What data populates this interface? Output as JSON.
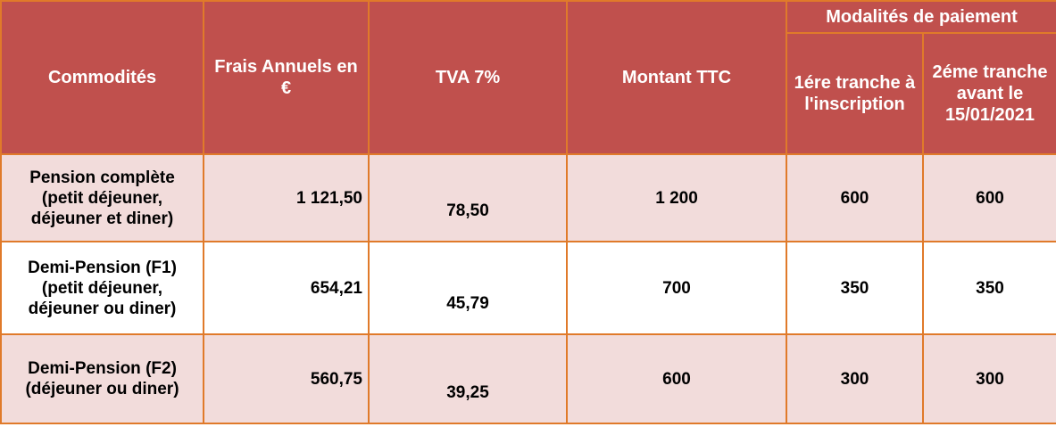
{
  "header": {
    "col_commodites": "Commodités",
    "col_frais": "Frais Annuels en €",
    "col_tva": "TVA 7%",
    "col_montant": "Montant TTC",
    "group_modalites": "Modalités de paiement",
    "col_tranche1": "1ére tranche à l'inscription",
    "col_tranche2": "2éme tranche avant le 15/01/2021"
  },
  "rows": [
    {
      "commodite": "Pension complète (petit déjeuner, déjeuner et diner)",
      "frais": "1 121,50",
      "tva": "78,50",
      "montant": "1 200",
      "tranche1": "600",
      "tranche2": "600"
    },
    {
      "commodite": "Demi-Pension (F1) (petit déjeuner, déjeuner ou diner)",
      "frais": "654,21",
      "tva": "45,79",
      "montant": "700",
      "tranche1": "350",
      "tranche2": "350"
    },
    {
      "commodite": "Demi-Pension (F2)(déjeuner ou diner)",
      "frais": "560,75",
      "tva": "39,25",
      "montant": "600",
      "tranche1": "300",
      "tranche2": "300"
    }
  ]
}
